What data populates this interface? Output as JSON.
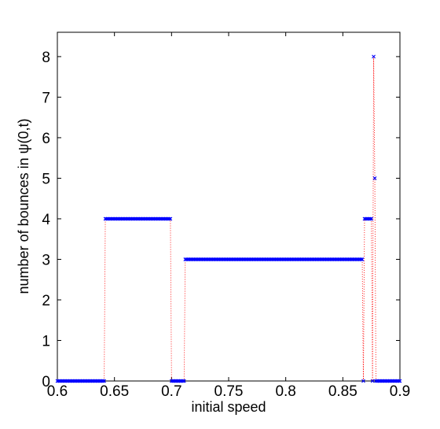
{
  "chart_data": {
    "type": "scatter",
    "title": "",
    "xlabel": "initial speed",
    "ylabel": "number of bounces in ψ(0,t)",
    "xlim": [
      0.6,
      0.9
    ],
    "ylim": [
      0,
      8.6
    ],
    "xticks": [
      "0.6",
      "0.65",
      "0.7",
      "0.75",
      "0.8",
      "0.85",
      "0.9"
    ],
    "yticks": [
      "0",
      "1",
      "2",
      "3",
      "4",
      "5",
      "6",
      "7",
      "8"
    ],
    "grid": false,
    "marker": "x",
    "marker_color": "#0000ff",
    "line_color": "#ff0000",
    "line_style": "dotted",
    "step": 0.001,
    "segments": [
      {
        "x_start": 0.6,
        "x_end": 0.641,
        "y": 0
      },
      {
        "x_start": 0.642,
        "x_end": 0.699,
        "y": 4
      },
      {
        "x_start": 0.7,
        "x_end": 0.711,
        "y": 0
      },
      {
        "x_start": 0.712,
        "x_end": 0.867,
        "y": 3
      },
      {
        "x_start": 0.868,
        "x_end": 0.868,
        "y": 0
      },
      {
        "x_start": 0.869,
        "x_end": 0.875,
        "y": 4
      },
      {
        "x_start": 0.876,
        "x_end": 0.876,
        "y": 0
      },
      {
        "x_start": 0.877,
        "x_end": 0.877,
        "y": 8
      },
      {
        "x_start": 0.878,
        "x_end": 0.878,
        "y": 5
      },
      {
        "x_start": 0.879,
        "x_end": 0.9,
        "y": 0
      }
    ]
  }
}
